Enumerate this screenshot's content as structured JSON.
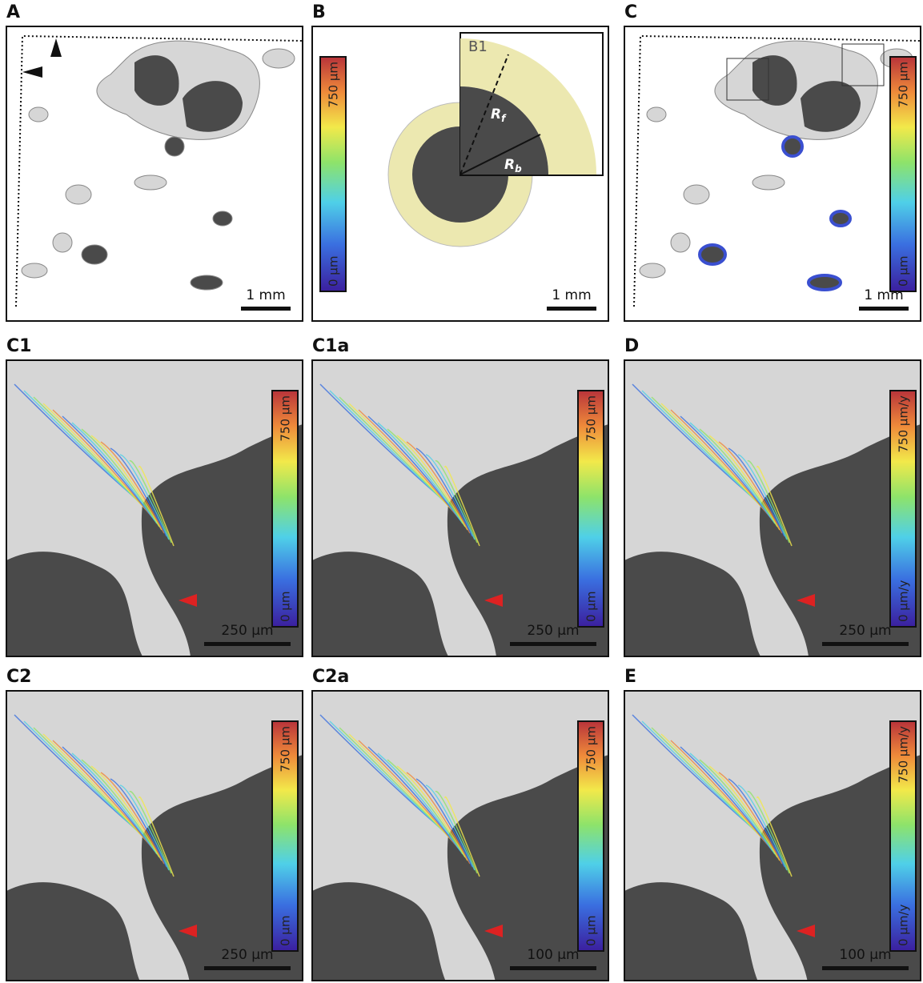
{
  "panels": [
    {
      "label": "A",
      "scale_bar": "1 mm"
    },
    {
      "label": "B",
      "scale_bar": "1 mm",
      "colorbar": {
        "top": "750 µm",
        "bottom": "0 µm"
      },
      "inset": "B1",
      "radii": [
        {
          "symbol": "R",
          "subscript": "f"
        },
        {
          "symbol": "R",
          "subscript": "b"
        }
      ]
    },
    {
      "label": "C",
      "scale_bar": "1 mm",
      "colorbar": {
        "top": "750 µm",
        "bottom": "0 µm"
      }
    },
    {
      "label": "C1",
      "scale_bar": "250 µm",
      "colorbar": {
        "top": "750 µm",
        "bottom": "0 µm"
      }
    },
    {
      "label": "C1a",
      "scale_bar": "250 µm",
      "colorbar": {
        "top": "750 µm",
        "bottom": "0 µm"
      }
    },
    {
      "label": "D",
      "scale_bar": "250 µm",
      "colorbar": {
        "top": "750 µm/y",
        "bottom": "0 µm/y"
      }
    },
    {
      "label": "C2",
      "scale_bar": "250 µm",
      "colorbar": {
        "top": "750 µm",
        "bottom": "0 µm"
      }
    },
    {
      "label": "C2a",
      "scale_bar": "100 µm",
      "colorbar": {
        "top": "750 µm",
        "bottom": "0 µm"
      }
    },
    {
      "label": "E",
      "scale_bar": "100 µm",
      "colorbar": {
        "top": "750 µm/y",
        "bottom": "0 µm/y"
      }
    }
  ]
}
